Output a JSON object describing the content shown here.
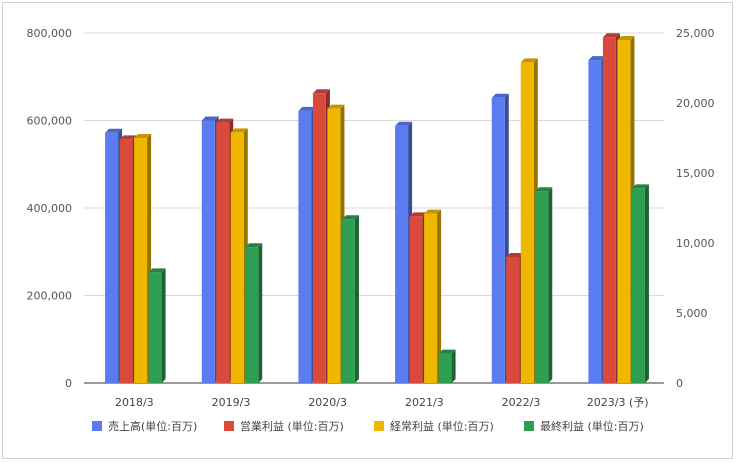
{
  "chart_data": {
    "type": "bar",
    "categories": [
      "2018/3",
      "2019/3",
      "2020/3",
      "2021/3",
      "2022/3",
      "2023/3 (予)"
    ],
    "y_left": {
      "ticks": [
        "0",
        "200,000",
        "400,000",
        "600,000",
        "800,000"
      ],
      "range": [
        0,
        800000
      ]
    },
    "y_right": {
      "ticks": [
        "0",
        "5,000",
        "10,000",
        "15,000",
        "20,000",
        "25,000"
      ],
      "range": [
        0,
        25000
      ]
    },
    "series": [
      {
        "name": "売上高(単位:百万)",
        "axis": "left",
        "color": "#5b7cf0",
        "values": [
          572000,
          600000,
          622000,
          588000,
          652000,
          738000
        ]
      },
      {
        "name": "営業利益 (単位:百万)",
        "axis": "right",
        "color": "#d94a3d",
        "values": [
          17400,
          18600,
          20700,
          11900,
          9000,
          24700
        ]
      },
      {
        "name": "経常利益 (単位:百万)",
        "axis": "right",
        "color": "#efb700",
        "values": [
          17500,
          17900,
          19600,
          12100,
          22900,
          24500
        ]
      },
      {
        "name": "最終利益 (単位:百万)",
        "axis": "right",
        "color": "#2e9e52",
        "values": [
          7900,
          9700,
          11700,
          2100,
          13700,
          13900
        ]
      }
    ],
    "grid": true,
    "legend": "bottom"
  }
}
